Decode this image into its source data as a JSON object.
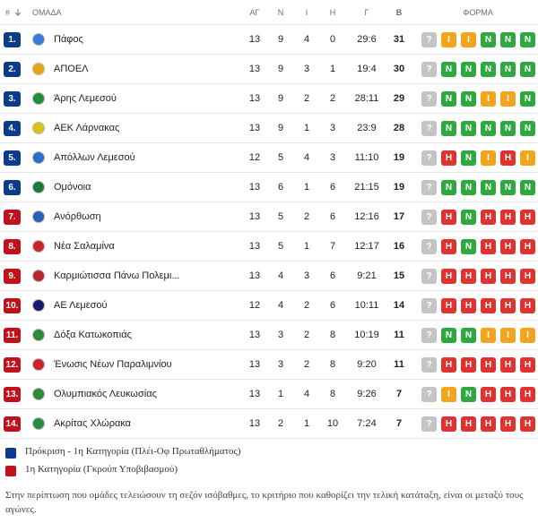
{
  "header": {
    "rank": "#",
    "team": "ΟΜΑΔΑ",
    "played": "ΑΓ",
    "wins": "Ν",
    "draws": "Ι",
    "losses": "Η",
    "goals": "Γ",
    "points": "Β",
    "form": "ΦΟΡΜΑ"
  },
  "form_colors": {
    "N": "#2ea83f",
    "I": "#f2a51c",
    "H": "#e0332f",
    "?": "#c4c4c4"
  },
  "table": {
    "rows": [
      {
        "rank": "1.",
        "team": "Πάφος",
        "played": 13,
        "wins": 9,
        "draws": 4,
        "losses": 0,
        "goals": "29:6",
        "points": 31,
        "color": "#0b3c8c",
        "form": [
          "?",
          "I",
          "I",
          "N",
          "N",
          "N"
        ]
      },
      {
        "rank": "2.",
        "team": "ΑΠΟΕΛ",
        "played": 13,
        "wins": 9,
        "draws": 3,
        "losses": 1,
        "goals": "19:4",
        "points": 30,
        "color": "#0b3c8c",
        "form": [
          "?",
          "N",
          "N",
          "N",
          "N",
          "N"
        ]
      },
      {
        "rank": "3.",
        "team": "Άρης Λεμεσού",
        "played": 13,
        "wins": 9,
        "draws": 2,
        "losses": 2,
        "goals": "28:11",
        "points": 29,
        "color": "#0b3c8c",
        "form": [
          "?",
          "N",
          "N",
          "I",
          "I",
          "N"
        ]
      },
      {
        "rank": "4.",
        "team": "ΑΕΚ Λάρνακας",
        "played": 13,
        "wins": 9,
        "draws": 1,
        "losses": 3,
        "goals": "23:9",
        "points": 28,
        "color": "#0b3c8c",
        "form": [
          "?",
          "N",
          "N",
          "N",
          "N",
          "N"
        ]
      },
      {
        "rank": "5.",
        "team": "Απόλλων Λεμεσού",
        "played": 12,
        "wins": 5,
        "draws": 4,
        "losses": 3,
        "goals": "11:10",
        "points": 19,
        "color": "#0b3c8c",
        "form": [
          "?",
          "H",
          "N",
          "I",
          "H",
          "I"
        ]
      },
      {
        "rank": "6.",
        "team": "Ομόνοια",
        "played": 13,
        "wins": 6,
        "draws": 1,
        "losses": 6,
        "goals": "21:15",
        "points": 19,
        "color": "#0b3c8c",
        "form": [
          "?",
          "N",
          "N",
          "N",
          "N",
          "N"
        ]
      },
      {
        "rank": "7.",
        "team": "Ανόρθωση",
        "played": 13,
        "wins": 5,
        "draws": 2,
        "losses": 6,
        "goals": "12:16",
        "points": 17,
        "color": "#c1121c",
        "form": [
          "?",
          "H",
          "N",
          "H",
          "H",
          "H"
        ]
      },
      {
        "rank": "8.",
        "team": "Νέα Σαλαμίνα",
        "played": 13,
        "wins": 5,
        "draws": 1,
        "losses": 7,
        "goals": "12:17",
        "points": 16,
        "color": "#c1121c",
        "form": [
          "?",
          "H",
          "N",
          "H",
          "H",
          "H"
        ]
      },
      {
        "rank": "9.",
        "team": "Καρμιώτισσα Πάνω Πολεμι...",
        "played": 13,
        "wins": 4,
        "draws": 3,
        "losses": 6,
        "goals": "9:21",
        "points": 15,
        "color": "#c1121c",
        "form": [
          "?",
          "H",
          "H",
          "H",
          "H",
          "H"
        ]
      },
      {
        "rank": "10.",
        "team": "ΑΕ Λεμεσού",
        "played": 12,
        "wins": 4,
        "draws": 2,
        "losses": 6,
        "goals": "10:11",
        "points": 14,
        "color": "#c1121c",
        "form": [
          "?",
          "H",
          "H",
          "H",
          "H",
          "H"
        ]
      },
      {
        "rank": "11.",
        "team": "Δόξα Κατωκοπιάς",
        "played": 13,
        "wins": 3,
        "draws": 2,
        "losses": 8,
        "goals": "10:19",
        "points": 11,
        "color": "#c1121c",
        "form": [
          "?",
          "N",
          "N",
          "I",
          "I",
          "I"
        ]
      },
      {
        "rank": "12.",
        "team": "Ένωσις Νέων Παραλιμνίου",
        "played": 13,
        "wins": 3,
        "draws": 2,
        "losses": 8,
        "goals": "9:20",
        "points": 11,
        "color": "#c1121c",
        "form": [
          "?",
          "H",
          "H",
          "H",
          "H",
          "H"
        ]
      },
      {
        "rank": "13.",
        "team": "Ολυμπιακός Λευκωσίας",
        "played": 13,
        "wins": 1,
        "draws": 4,
        "losses": 8,
        "goals": "9:26",
        "points": 7,
        "color": "#c1121c",
        "form": [
          "?",
          "I",
          "N",
          "H",
          "H",
          "H"
        ]
      },
      {
        "rank": "14.",
        "team": "Ακρίτας Χλώρακα",
        "played": 13,
        "wins": 2,
        "draws": 1,
        "losses": 10,
        "goals": "7:24",
        "points": 7,
        "color": "#c1121c",
        "form": [
          "?",
          "H",
          "H",
          "H",
          "H",
          "H"
        ]
      }
    ]
  },
  "legend": [
    {
      "label": "Πρόκριση - 1η Κατηγορία (Πλέι-Οφ Πρωταθλήματος)",
      "color": "#0b3c8c"
    },
    {
      "label": "1η Κατηγορία (Γκρούπ Υποβιβασμού)",
      "color": "#c1121c"
    }
  ],
  "note": "Στην περίπτωση που ομάδες τελειώσουν τη σεζόν ισόβαθμες, το κριτήριο που καθορίζει την τελική κατάταξη, είναι οι μεταξύ τους αγώνες."
}
